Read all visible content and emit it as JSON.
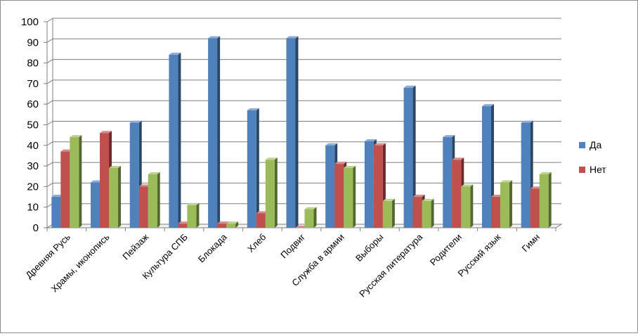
{
  "chart_data": {
    "type": "bar",
    "title": "",
    "xlabel": "",
    "ylabel": "",
    "ylim": [
      0,
      100
    ],
    "yticks": [
      0,
      10,
      20,
      30,
      40,
      50,
      60,
      70,
      80,
      90,
      100
    ],
    "yticks_text": [
      "0",
      "10",
      "20",
      "30",
      "40",
      "50",
      "60",
      "70",
      "80",
      "90",
      "100"
    ],
    "grid": true,
    "legend_position": "right",
    "style": "3d-clustered-column",
    "categories": [
      "Древняя Русь",
      "Храмы, иконопись",
      "Пейзаж",
      "Культура СПБ",
      "Блокада",
      "Хлеб",
      "Подвиг",
      "Служба в армии",
      "Выборы",
      "Русская литература",
      "Родители",
      "Русский язык",
      "Гимн"
    ],
    "series": [
      {
        "name": "Да",
        "color": "#4f81bd",
        "values": [
          15,
          22,
          51,
          84,
          92,
          57,
          92,
          40,
          42,
          68,
          44,
          59,
          51
        ]
      },
      {
        "name": "Нет",
        "color": "#c0504d",
        "values": [
          37,
          46,
          20,
          2,
          2,
          7,
          0,
          31,
          40,
          15,
          33,
          15,
          19
        ]
      },
      {
        "color": "#9bbb59",
        "values": [
          44,
          29,
          26,
          11,
          2,
          33,
          9,
          29,
          13,
          13,
          20,
          22,
          26
        ]
      }
    ]
  }
}
